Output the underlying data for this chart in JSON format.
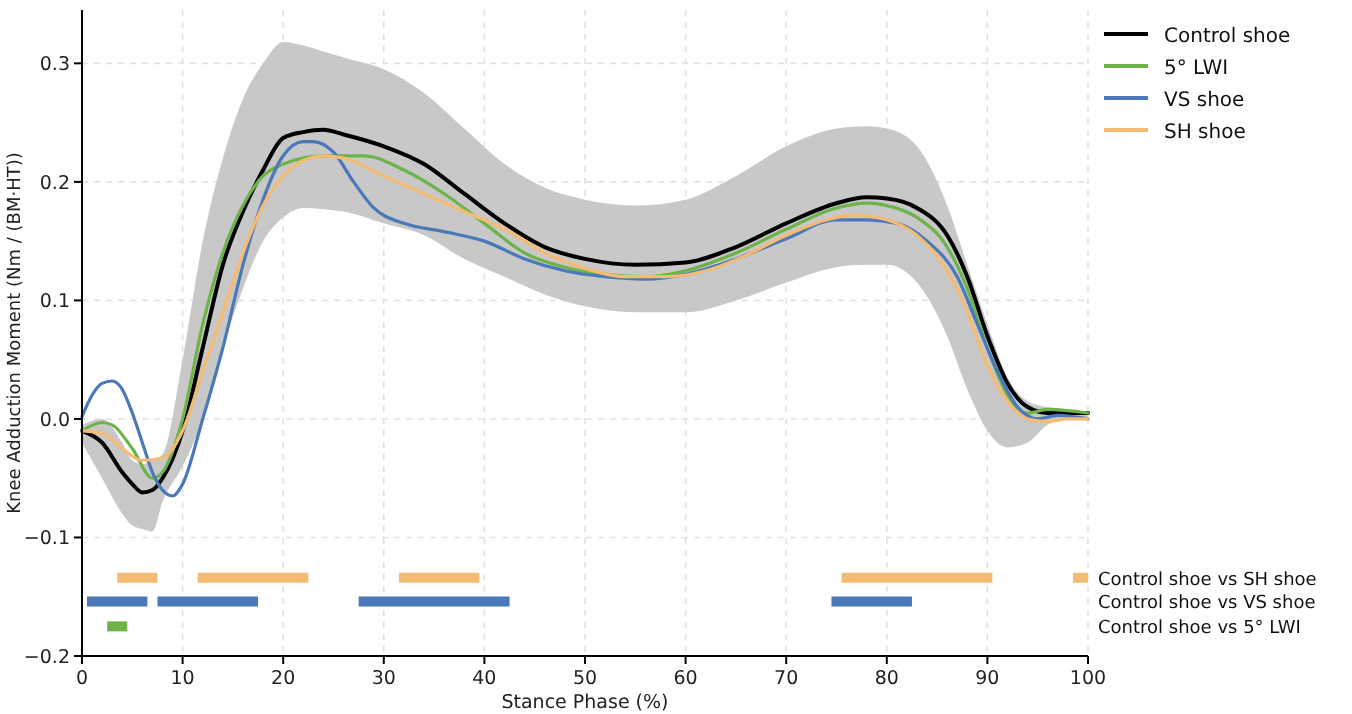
{
  "chart_data": {
    "type": "line",
    "xlabel": "Stance Phase (%)",
    "ylabel": "Knee Adduction Moment (Nm / (BM·HT))",
    "xlim": [
      0,
      100
    ],
    "xticks": [
      0,
      10,
      20,
      30,
      40,
      50,
      60,
      70,
      80,
      90,
      100
    ],
    "ylim": [
      -0.2,
      0.345
    ],
    "yticks": [
      {
        "value": -0.2,
        "label": "−0.2"
      },
      {
        "value": -0.1,
        "label": "−0.1"
      },
      {
        "value": 0,
        "label": "0.0"
      },
      0.1,
      0.2,
      0.3
    ],
    "grid": true,
    "legend": "top right",
    "line_style": "solid",
    "marker": "none",
    "series": [
      {
        "name": "Control shoe",
        "color": "#000000",
        "x": [
          0,
          2,
          4,
          5,
          6,
          7,
          8,
          10,
          12,
          14,
          16,
          18,
          20,
          22,
          24,
          26,
          30,
          34,
          38,
          42,
          46,
          50,
          55,
          60,
          65,
          70,
          75,
          78,
          80,
          83,
          86,
          88,
          90,
          92,
          94,
          96,
          98,
          100
        ],
        "values": [
          -0.01,
          -0.02,
          -0.045,
          -0.055,
          -0.062,
          -0.06,
          -0.05,
          -0.01,
          0.06,
          0.13,
          0.175,
          0.21,
          0.237,
          0.242,
          0.244,
          0.24,
          0.23,
          0.215,
          0.19,
          0.165,
          0.145,
          0.135,
          0.13,
          0.132,
          0.145,
          0.165,
          0.182,
          0.187,
          0.186,
          0.178,
          0.155,
          0.12,
          0.07,
          0.03,
          0.01,
          0.005,
          0.005,
          0.005
        ],
        "lower": [
          -0.02,
          -0.05,
          -0.08,
          -0.09,
          -0.093,
          -0.095,
          -0.07,
          -0.04,
          0.0,
          0.06,
          0.11,
          0.15,
          0.17,
          0.178,
          0.177,
          0.175,
          0.165,
          0.155,
          0.135,
          0.12,
          0.105,
          0.095,
          0.09,
          0.09,
          0.1,
          0.115,
          0.128,
          0.13,
          0.13,
          0.115,
          0.07,
          0.025,
          -0.01,
          -0.024,
          -0.02,
          -0.005,
          0.0,
          0.0
        ],
        "upper": [
          -0.005,
          0.0,
          -0.02,
          -0.035,
          -0.038,
          -0.035,
          -0.03,
          0.05,
          0.15,
          0.22,
          0.27,
          0.3,
          0.318,
          0.315,
          0.31,
          0.305,
          0.295,
          0.275,
          0.245,
          0.215,
          0.195,
          0.185,
          0.18,
          0.185,
          0.205,
          0.23,
          0.245,
          0.247,
          0.245,
          0.23,
          0.18,
          0.13,
          0.08,
          0.035,
          0.015,
          0.01,
          0.008,
          0.005
        ]
      },
      {
        "name": "5° LWI",
        "color": "#6db34a",
        "x": [
          0,
          2,
          3,
          5,
          7,
          8,
          10,
          12,
          14,
          16,
          18,
          20,
          24,
          28,
          32,
          36,
          40,
          44,
          48,
          52,
          56,
          60,
          65,
          70,
          75,
          78,
          80,
          83,
          86,
          88,
          90,
          92,
          94,
          96,
          100
        ],
        "values": [
          -0.01,
          -0.003,
          -0.005,
          -0.025,
          -0.05,
          -0.045,
          0.0,
          0.08,
          0.14,
          0.18,
          0.205,
          0.215,
          0.222,
          0.222,
          0.21,
          0.19,
          0.165,
          0.14,
          0.128,
          0.122,
          0.12,
          0.125,
          0.14,
          0.16,
          0.178,
          0.182,
          0.18,
          0.17,
          0.145,
          0.11,
          0.06,
          0.02,
          0.005,
          0.008,
          0.005
        ]
      },
      {
        "name": "VS shoe",
        "color": "#4a78b8",
        "x": [
          0,
          1,
          2,
          3,
          4,
          5,
          6,
          7,
          8,
          9,
          10,
          12,
          14,
          16,
          18,
          20,
          22,
          23,
          25,
          27,
          29,
          32,
          36,
          40,
          44,
          48,
          52,
          56,
          60,
          65,
          70,
          75,
          78,
          81,
          84,
          87,
          89,
          91,
          93,
          95,
          97,
          100
        ],
        "values": [
          0.002,
          0.02,
          0.03,
          0.032,
          0.025,
          0.005,
          -0.02,
          -0.045,
          -0.06,
          -0.065,
          -0.055,
          0.0,
          0.06,
          0.13,
          0.185,
          0.222,
          0.234,
          0.234,
          0.225,
          0.2,
          0.178,
          0.165,
          0.158,
          0.15,
          0.135,
          0.125,
          0.12,
          0.118,
          0.122,
          0.135,
          0.152,
          0.168,
          0.168,
          0.165,
          0.15,
          0.12,
          0.08,
          0.04,
          0.01,
          0.0,
          0.003,
          0.0
        ]
      },
      {
        "name": "SH shoe",
        "color": "#f4bb74",
        "x": [
          0,
          2,
          4,
          6,
          8,
          10,
          12,
          14,
          16,
          18,
          20,
          22,
          24,
          26,
          30,
          34,
          38,
          42,
          46,
          50,
          54,
          58,
          62,
          66,
          70,
          75,
          77,
          80,
          83,
          86,
          88,
          90,
          92,
          94,
          96,
          98,
          100
        ],
        "values": [
          -0.01,
          -0.012,
          -0.025,
          -0.035,
          -0.033,
          -0.01,
          0.04,
          0.09,
          0.14,
          0.18,
          0.205,
          0.218,
          0.222,
          0.22,
          0.205,
          0.19,
          0.175,
          0.16,
          0.14,
          0.127,
          0.12,
          0.12,
          0.125,
          0.138,
          0.155,
          0.17,
          0.172,
          0.168,
          0.155,
          0.125,
          0.09,
          0.045,
          0.015,
          0.0,
          -0.002,
          0.0,
          0.0
        ]
      },
      {
        "name": "Control shoe vs SH shoe",
        "color": "#f4bb74",
        "x": [
          98.5,
          100
        ],
        "values": [
          -0.134,
          -0.134
        ]
      },
      {
        "color": "#f4bb74",
        "x": [
          3.5,
          7.5
        ],
        "values": [
          -0.134,
          -0.134
        ]
      },
      {
        "color": "#f4bb74",
        "x": [
          11.5,
          22.5
        ],
        "values": [
          -0.134,
          -0.134
        ]
      },
      {
        "color": "#f4bb74",
        "x": [
          31.5,
          39.5
        ],
        "values": [
          -0.134,
          -0.134
        ]
      },
      {
        "color": "#f4bb74",
        "x": [
          75.5,
          90.5
        ],
        "values": [
          -0.134,
          -0.134
        ]
      },
      {
        "name": "Control shoe vs VS shoe",
        "color": "#4a78b8",
        "x": [
          0.5,
          6.5
        ],
        "values": [
          -0.154,
          -0.154
        ]
      },
      {
        "color": "#4a78b8",
        "x": [
          7.5,
          17.5
        ],
        "values": [
          -0.154,
          -0.154
        ]
      },
      {
        "color": "#4a78b8",
        "x": [
          27.5,
          42.5
        ],
        "values": [
          -0.154,
          -0.154
        ]
      },
      {
        "color": "#4a78b8",
        "x": [
          74.5,
          82.5
        ],
        "values": [
          -0.154,
          -0.154
        ]
      },
      {
        "name": "Control shoe vs 5° LWI",
        "color": "#6db34a",
        "x": [
          2.5,
          4.5
        ],
        "values": [
          -0.175,
          -0.175
        ]
      }
    ]
  }
}
